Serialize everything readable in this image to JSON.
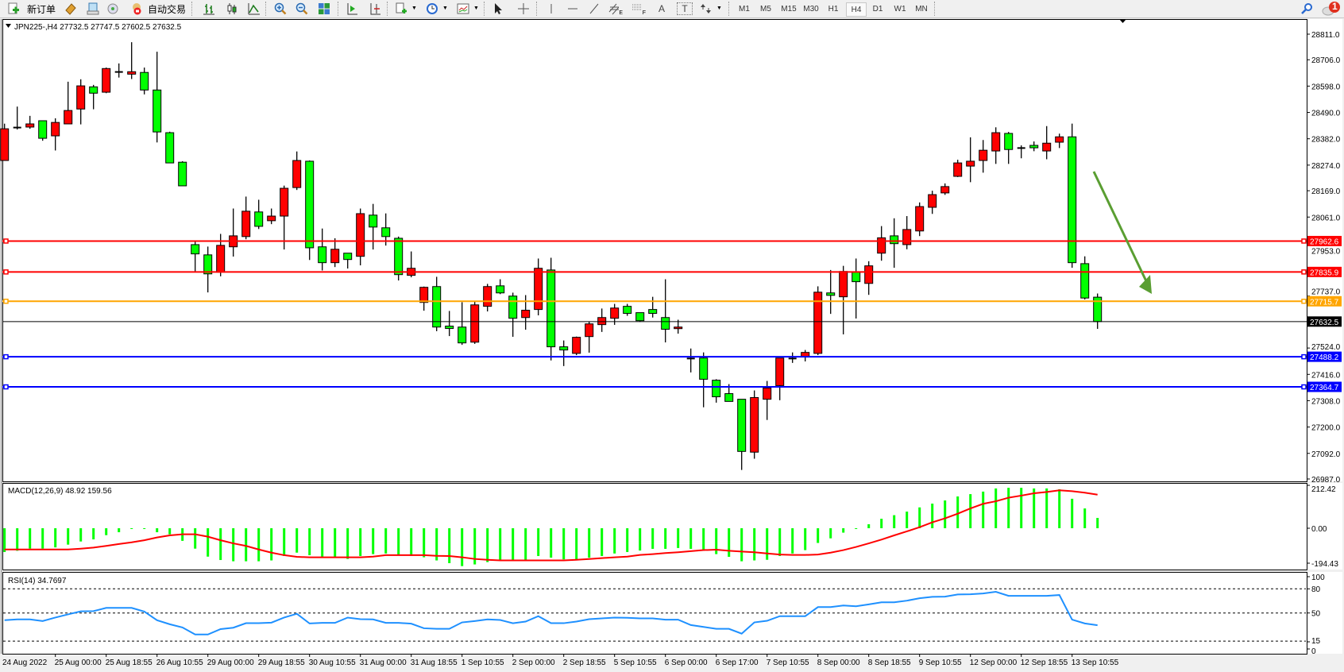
{
  "toolbar": {
    "new_order_label": "新订单",
    "auto_trading_label": "自动交易",
    "timeframes": [
      "M1",
      "M5",
      "M15",
      "M30",
      "H1",
      "H4",
      "D1",
      "W1",
      "MN"
    ],
    "selected_timeframe": "H4",
    "text_tool_label": "T",
    "label_tool_label": "A",
    "fibo_sub": "F",
    "channel_sub": "E",
    "notification_count": "1",
    "icons": [
      "new-order-icon",
      "history-icon",
      "terminal-icon",
      "signals-icon",
      "auto-trading-icon",
      "bar-chart-icon",
      "candlestick-icon",
      "line-chart-icon",
      "zoom-in-icon",
      "zoom-out-icon",
      "tile-windows-icon",
      "chart-shift-icon",
      "autoscroll-icon",
      "indicators-icon",
      "periods-icon",
      "templates-icon",
      "cursor-icon",
      "crosshair-icon",
      "vertical-line-icon",
      "horizontal-line-icon",
      "trendline-icon",
      "equidistant-channel-icon",
      "fibonacci-icon",
      "text-icon",
      "label-icon",
      "arrows-icon",
      "search-icon",
      "notification-icon"
    ]
  },
  "chart": {
    "title": "JPN225-,H4  27732.5 27747.5 27602.5 27632.5",
    "symbol": "JPN225-",
    "timeframe": "H4",
    "colors": {
      "bull_body": "#ff0000",
      "bear_body": "#00ff00",
      "wick": "#000000",
      "macd_hist": "#00ff00",
      "macd_signal": "#ff0000",
      "rsi_line": "#1e90ff",
      "arrow": "#5a9e32"
    }
  },
  "chart_data": {
    "type": "candlestick",
    "ohlc_order": [
      "open",
      "high",
      "low",
      "close"
    ],
    "candles": [
      [
        28293,
        28444,
        28293,
        28423
      ],
      [
        28428,
        28514,
        28420,
        28428
      ],
      [
        28430,
        28476,
        28423,
        28443
      ],
      [
        28456,
        28456,
        28374,
        28384
      ],
      [
        28394,
        28466,
        28334,
        28449
      ],
      [
        28443,
        28616,
        28443,
        28498
      ],
      [
        28504,
        28626,
        28441,
        28599
      ],
      [
        28595,
        28603,
        28503,
        28569
      ],
      [
        28573,
        28674,
        28569,
        28670
      ],
      [
        28656,
        28691,
        28633,
        28656
      ],
      [
        28647,
        28778,
        28627,
        28657
      ],
      [
        28654,
        28674,
        28564,
        28582
      ],
      [
        28582,
        28739,
        28367,
        28410
      ],
      [
        28407,
        28411,
        28283,
        28283
      ],
      [
        28286,
        28290,
        28189,
        28189
      ],
      [
        27948,
        27965,
        27835,
        27910
      ],
      [
        27906,
        27940,
        27752,
        27828
      ],
      [
        27835,
        27992,
        27818,
        27945
      ],
      [
        27939,
        28096,
        27899,
        27984
      ],
      [
        27981,
        28145,
        27970,
        28085
      ],
      [
        28082,
        28132,
        28012,
        28023
      ],
      [
        28046,
        28096,
        28032,
        28065
      ],
      [
        28065,
        28190,
        27928,
        28179
      ],
      [
        28182,
        28330,
        28172,
        28293
      ],
      [
        28290,
        28293,
        27885,
        27935
      ],
      [
        27939,
        28014,
        27842,
        27874
      ],
      [
        27874,
        27974,
        27856,
        27929
      ],
      [
        27913,
        27913,
        27850,
        27887
      ],
      [
        27900,
        28096,
        27863,
        28075
      ],
      [
        28069,
        28115,
        27928,
        28020
      ],
      [
        28017,
        28076,
        27944,
        27981
      ],
      [
        27974,
        27981,
        27801,
        27825
      ],
      [
        27822,
        27920,
        27814,
        27851
      ],
      [
        27711,
        27776,
        27677,
        27773
      ],
      [
        27776,
        27816,
        27593,
        27610
      ],
      [
        27614,
        27676,
        27573,
        27604
      ],
      [
        27610,
        27712,
        27537,
        27545
      ],
      [
        27548,
        27715,
        27541,
        27701
      ],
      [
        27695,
        27787,
        27674,
        27776
      ],
      [
        27779,
        27806,
        27745,
        27750
      ],
      [
        27737,
        27751,
        27570,
        27646
      ],
      [
        27649,
        27741,
        27599,
        27679
      ],
      [
        27682,
        27891,
        27658,
        27851
      ],
      [
        27844,
        27894,
        27473,
        27529
      ],
      [
        27529,
        27555,
        27450,
        27516
      ],
      [
        27502,
        27571,
        27495,
        27568
      ],
      [
        27571,
        27633,
        27505,
        27623
      ],
      [
        27620,
        27686,
        27590,
        27649
      ],
      [
        27646,
        27705,
        27619,
        27688
      ],
      [
        27695,
        27705,
        27656,
        27666
      ],
      [
        27669,
        27669,
        27631,
        27636
      ],
      [
        27682,
        27734,
        27649,
        27666
      ],
      [
        27649,
        27806,
        27547,
        27601
      ],
      [
        27604,
        27640,
        27583,
        27610
      ],
      [
        27481,
        27522,
        27424,
        27481
      ],
      [
        27483,
        27506,
        27281,
        27396
      ],
      [
        27392,
        27396,
        27300,
        27324
      ],
      [
        27337,
        27376,
        27305,
        27305
      ],
      [
        27314,
        27314,
        27024,
        27100
      ],
      [
        27097,
        27350,
        27070,
        27321
      ],
      [
        27314,
        27389,
        27229,
        27360
      ],
      [
        27370,
        27483,
        27310,
        27483
      ],
      [
        27481,
        27506,
        27463,
        27481
      ],
      [
        27487,
        27516,
        27469,
        27506
      ],
      [
        27502,
        27777,
        27495,
        27753
      ],
      [
        27750,
        27844,
        27664,
        27740
      ],
      [
        27734,
        27861,
        27580,
        27838
      ],
      [
        27835,
        27891,
        27645,
        27796
      ],
      [
        27789,
        27880,
        27742,
        27861
      ],
      [
        27913,
        28024,
        27882,
        27976
      ],
      [
        27984,
        28056,
        27853,
        27952
      ],
      [
        27948,
        28065,
        27929,
        28010
      ],
      [
        28004,
        28121,
        27983,
        28104
      ],
      [
        28101,
        28169,
        28074,
        28153
      ],
      [
        28160,
        28199,
        28152,
        28186
      ],
      [
        28228,
        28296,
        28225,
        28283
      ],
      [
        28270,
        28388,
        28204,
        28290
      ],
      [
        28293,
        28377,
        28243,
        28335
      ],
      [
        28332,
        28429,
        28279,
        28407
      ],
      [
        28404,
        28410,
        28279,
        28338
      ],
      [
        28344,
        28355,
        28302,
        28344
      ],
      [
        28355,
        28371,
        28331,
        28345
      ],
      [
        28332,
        28434,
        28298,
        28364
      ],
      [
        28368,
        28403,
        28344,
        28390
      ],
      [
        28390,
        28444,
        27853,
        27874
      ],
      [
        27870,
        27900,
        27723,
        27729
      ],
      [
        27732.5,
        27747.5,
        27602.5,
        27632.5
      ]
    ],
    "price_axis": {
      "range": [
        26987.0,
        28811.0
      ],
      "ticks": [
        "28811.0",
        "28706.0",
        "28598.0",
        "28490.0",
        "28382.0",
        "28274.0",
        "28169.0",
        "28061.0",
        "27953.0",
        "27737.0",
        "27524.0",
        "27416.0",
        "27308.0",
        "27200.0",
        "27092.0",
        "26987.0"
      ]
    },
    "current_price": {
      "value": 27632.5,
      "label": "27632.5",
      "color": "#000000"
    },
    "horizontal_lines": [
      {
        "value": 27962.6,
        "label": "27962.6",
        "color": "#ff0000"
      },
      {
        "value": 27835.9,
        "label": "27835.9",
        "color": "#ff0000"
      },
      {
        "value": 27715.7,
        "label": "27715.7",
        "color": "#ffa500"
      },
      {
        "value": 27488.2,
        "label": "27488.2",
        "color": "#0000ff"
      },
      {
        "value": 27364.7,
        "label": "27364.7",
        "color": "#0000ff"
      }
    ],
    "time_axis": {
      "labels": [
        "24 Aug 2022",
        "25 Aug 00:00",
        "25 Aug 18:55",
        "26 Aug 10:55",
        "29 Aug 00:00",
        "29 Aug 18:55",
        "30 Aug 10:55",
        "31 Aug 00:00",
        "31 Aug 18:55",
        "1 Sep 10:55",
        "2 Sep 00:00",
        "2 Sep 18:55",
        "5 Sep 10:55",
        "6 Sep 00:00",
        "6 Sep 17:00",
        "7 Sep 10:55",
        "8 Sep 00:00",
        "8 Sep 18:55",
        "9 Sep 10:55",
        "12 Sep 00:00",
        "12 Sep 18:55",
        "13 Sep 10:55"
      ],
      "label_every_n_bars": 4
    },
    "macd": {
      "title": "MACD(12,26,9) 48.92 159.56",
      "axis_labels": [
        "212.42",
        "0.00",
        "-194.43"
      ],
      "range": [
        -194.43,
        212.42
      ],
      "histogram": [
        -113,
        -107,
        -97,
        -97,
        -91,
        -78,
        -63,
        -53,
        -33,
        -19,
        -3,
        -3,
        -19,
        -29,
        -60,
        -97,
        -135,
        -151,
        -157,
        -157,
        -157,
        -153,
        -132,
        -116,
        -128,
        -136,
        -136,
        -146,
        -132,
        -123,
        -120,
        -126,
        -132,
        -138,
        -153,
        -166,
        -180,
        -172,
        -161,
        -151,
        -151,
        -151,
        -132,
        -140,
        -148,
        -148,
        -140,
        -132,
        -120,
        -113,
        -106,
        -98,
        -98,
        -94,
        -98,
        -107,
        -123,
        -136,
        -157,
        -153,
        -150,
        -132,
        -120,
        -104,
        -70,
        -48,
        -21,
        -3,
        19,
        45,
        62,
        79,
        99,
        117,
        132,
        151,
        162,
        174,
        189,
        192,
        192,
        189,
        189,
        185,
        140,
        94,
        48.92
      ],
      "signal": [
        -101,
        -101,
        -101,
        -101,
        -101,
        -101,
        -97,
        -92,
        -84,
        -75,
        -67,
        -57,
        -44,
        -34,
        -29,
        -29,
        -40,
        -57,
        -72,
        -84,
        -101,
        -116,
        -128,
        -136,
        -138,
        -138,
        -138,
        -138,
        -138,
        -135,
        -128,
        -128,
        -128,
        -128,
        -131,
        -132,
        -138,
        -146,
        -150,
        -153,
        -153,
        -153,
        -153,
        -153,
        -153,
        -150,
        -146,
        -142,
        -138,
        -135,
        -127,
        -123,
        -118,
        -114,
        -109,
        -104,
        -102,
        -107,
        -111,
        -114,
        -120,
        -125,
        -127,
        -127,
        -125,
        -116,
        -104,
        -89,
        -72,
        -54,
        -34,
        -15,
        5,
        28,
        47,
        69,
        94,
        116,
        128,
        145,
        155,
        166,
        172,
        180,
        176,
        169,
        159.56
      ]
    },
    "rsi": {
      "title": "RSI(14) 34.7697",
      "axis_labels": [
        "100",
        "80",
        "50",
        "15",
        "0"
      ],
      "levels": [
        80,
        50,
        15
      ],
      "range": [
        0,
        100
      ],
      "values": [
        41,
        42,
        42,
        40,
        44.3,
        48.3,
        52,
        52.3,
        56.3,
        56.3,
        56.3,
        51.7,
        41,
        36,
        32,
        23.3,
        23.3,
        30,
        31.7,
        37.3,
        37.3,
        38,
        44.3,
        49,
        37,
        37.7,
        37.7,
        44.3,
        42.3,
        42,
        37.7,
        37.7,
        36.7,
        31,
        30.3,
        30.3,
        38.3,
        40,
        42,
        41.3,
        37.3,
        39.3,
        46,
        37.3,
        37.3,
        39.3,
        42.3,
        43.3,
        44.3,
        44,
        43.3,
        43.3,
        41.7,
        41.7,
        35,
        32.7,
        30.3,
        30.3,
        24.3,
        38.3,
        40.3,
        46,
        46,
        46,
        57.3,
        57.3,
        59.3,
        58.3,
        60.7,
        63.3,
        63.3,
        65.3,
        68.3,
        70,
        70.3,
        73,
        73.3,
        74.3,
        76.3,
        71.3,
        71.3,
        71.3,
        71.3,
        72.3,
        41.7,
        37,
        34.7697
      ]
    }
  }
}
